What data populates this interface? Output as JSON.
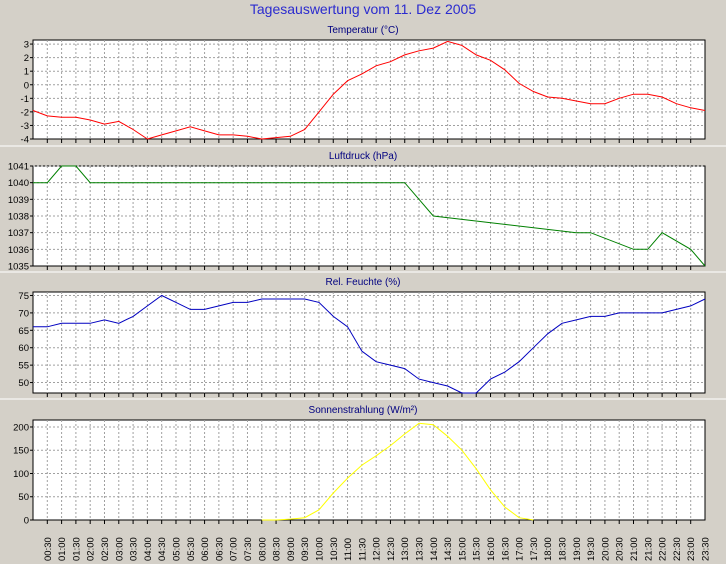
{
  "title": "Tagesauswertung vom 11. Dez 2005",
  "x_axis": {
    "ticks": [
      "00:30",
      "01:00",
      "01:30",
      "02:00",
      "02:30",
      "03:00",
      "03:30",
      "04:00",
      "04:30",
      "05:00",
      "05:30",
      "06:00",
      "06:30",
      "07:00",
      "07:30",
      "08:00",
      "08:30",
      "09:00",
      "09:30",
      "10:00",
      "10:30",
      "11:00",
      "11:30",
      "12:00",
      "12:30",
      "13:00",
      "13:30",
      "14:00",
      "14:30",
      "15:00",
      "15:30",
      "16:00",
      "16:30",
      "17:00",
      "17:30",
      "18:00",
      "18:30",
      "19:00",
      "19:30",
      "20:00",
      "20:30",
      "21:00",
      "21:30",
      "22:00",
      "22:30",
      "23:00",
      "23:30"
    ]
  },
  "colors": {
    "background": "#d4d0c8",
    "plot_background": "#ffffff",
    "grid": "#a0a0a0",
    "title": "#2b2bcf",
    "panel_title": "#000080"
  },
  "chart_data": [
    {
      "type": "line",
      "title": "Temperatur (°C)",
      "xlabel": "",
      "ylabel": "",
      "ylim": [
        -4,
        3.3
      ],
      "yticks": [
        3,
        2,
        1,
        0,
        -1,
        -2,
        -3,
        -4
      ],
      "grid": true,
      "series": [
        {
          "color": "#ff0000",
          "x": [
            "00:00",
            "00:30",
            "01:00",
            "01:30",
            "02:00",
            "02:30",
            "03:00",
            "03:30",
            "04:00",
            "04:30",
            "05:00",
            "05:30",
            "06:00",
            "06:30",
            "07:00",
            "07:30",
            "08:00",
            "08:30",
            "09:00",
            "09:30",
            "10:00",
            "10:30",
            "11:00",
            "11:30",
            "12:00",
            "12:30",
            "13:00",
            "13:30",
            "14:00",
            "14:30",
            "15:00",
            "15:30",
            "16:00",
            "16:30",
            "17:00",
            "17:30",
            "18:00",
            "18:30",
            "19:00",
            "19:30",
            "20:00",
            "20:30",
            "21:00",
            "21:30",
            "22:00",
            "22:30",
            "23:00",
            "23:30"
          ],
          "values": [
            -1.9,
            -2.3,
            -2.4,
            -2.4,
            -2.6,
            -2.9,
            -2.7,
            -3.3,
            -4.0,
            -3.7,
            -3.4,
            -3.1,
            -3.4,
            -3.7,
            -3.7,
            -3.8,
            -4.0,
            -3.9,
            -3.8,
            -3.3,
            -2.0,
            -0.7,
            0.3,
            0.8,
            1.4,
            1.7,
            2.2,
            2.5,
            2.7,
            3.2,
            2.9,
            2.2,
            1.8,
            1.1,
            0.1,
            -0.5,
            -0.9,
            -1.0,
            -1.2,
            -1.4,
            -1.4,
            -1.0,
            -0.7,
            -0.7,
            -0.9,
            -1.4,
            -1.7,
            -1.9
          ]
        }
      ]
    },
    {
      "type": "line",
      "title": "Luftdruck (hPa)",
      "xlabel": "",
      "ylabel": "",
      "ylim": [
        1035,
        1041
      ],
      "yticks": [
        1041,
        1040,
        1039,
        1038,
        1037,
        1036,
        1035
      ],
      "grid": true,
      "series": [
        {
          "color": "#008000",
          "x": [
            "00:00",
            "00:30",
            "01:00",
            "01:30",
            "02:00",
            "12:30",
            "13:00",
            "13:30",
            "14:00",
            "19:00",
            "19:30",
            "21:00",
            "21:30",
            "22:00",
            "23:00",
            "23:30"
          ],
          "values": [
            1040,
            1040,
            1041,
            1041,
            1040,
            1040,
            1040,
            1039,
            1038,
            1037,
            1037,
            1036,
            1036,
            1037,
            1036,
            1035
          ]
        }
      ]
    },
    {
      "type": "line",
      "title": "Rel. Feuchte (%)",
      "xlabel": "",
      "ylabel": "",
      "ylim": [
        47,
        76
      ],
      "yticks": [
        75,
        70,
        65,
        60,
        55,
        50
      ],
      "grid": true,
      "series": [
        {
          "color": "#0000c0",
          "x": [
            "00:00",
            "00:30",
            "01:00",
            "01:30",
            "02:00",
            "02:30",
            "03:00",
            "03:30",
            "04:00",
            "04:30",
            "05:00",
            "05:30",
            "06:00",
            "06:30",
            "07:00",
            "07:30",
            "08:00",
            "08:30",
            "09:00",
            "09:30",
            "10:00",
            "10:30",
            "11:00",
            "11:30",
            "12:00",
            "12:30",
            "13:00",
            "13:30",
            "14:00",
            "14:30",
            "15:00",
            "15:30",
            "16:00",
            "16:30",
            "17:00",
            "17:30",
            "18:00",
            "18:30",
            "19:00",
            "19:30",
            "20:00",
            "20:30",
            "21:00",
            "21:30",
            "22:00",
            "22:30",
            "23:00",
            "23:30"
          ],
          "values": [
            66,
            66,
            67,
            67,
            67,
            68,
            67,
            69,
            72,
            75,
            73,
            71,
            71,
            72,
            73,
            73,
            74,
            74,
            74,
            74,
            73,
            69,
            66,
            59,
            56,
            55,
            54,
            51,
            50,
            49,
            47,
            47,
            51,
            53,
            56,
            60,
            64,
            67,
            68,
            69,
            69,
            70,
            70,
            70,
            70,
            71,
            72,
            74
          ]
        }
      ]
    },
    {
      "type": "line",
      "title": "Sonnenstrahlung (W/m²)",
      "xlabel": "",
      "ylabel": "",
      "ylim": [
        0,
        215
      ],
      "yticks": [
        200,
        150,
        100,
        50,
        0
      ],
      "grid": true,
      "series": [
        {
          "color": "#ffff00",
          "x": [
            "08:00",
            "08:30",
            "09:00",
            "09:30",
            "10:00",
            "10:30",
            "11:00",
            "11:30",
            "12:00",
            "12:30",
            "13:00",
            "13:30",
            "14:00",
            "14:30",
            "15:00",
            "15:30",
            "16:00",
            "16:30",
            "17:00",
            "17:30"
          ],
          "values": [
            0,
            0,
            2,
            5,
            22,
            58,
            90,
            118,
            138,
            160,
            185,
            208,
            205,
            180,
            150,
            110,
            65,
            28,
            5,
            0
          ]
        }
      ]
    }
  ]
}
